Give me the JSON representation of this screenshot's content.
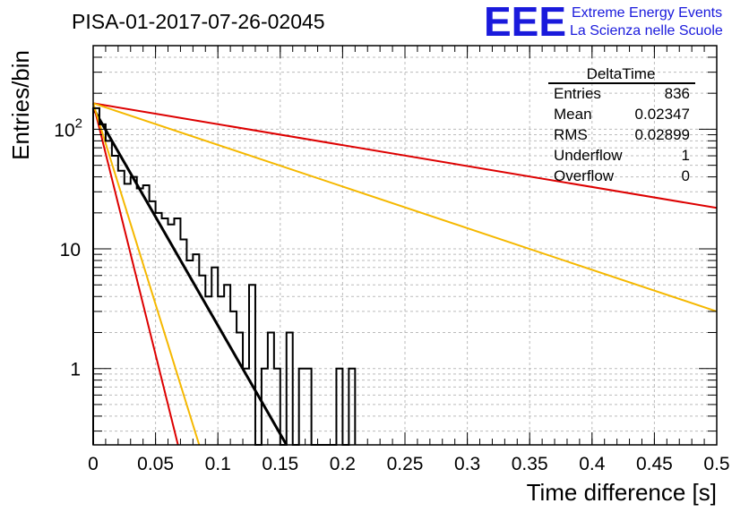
{
  "chart_data": {
    "type": "histogram",
    "title": "PISA-01-2017-07-26-02045",
    "xlabel": "Time difference [s]",
    "ylabel": "Entries/bin",
    "xlim": [
      0,
      0.5
    ],
    "ylim": [
      0.23,
      500
    ],
    "yscale": "log",
    "grid": true,
    "xticks": [
      "0",
      "0.05",
      "0.1",
      "0.15",
      "0.2",
      "0.25",
      "0.3",
      "0.35",
      "0.4",
      "0.45",
      "0.5"
    ],
    "xtick_values": [
      0,
      0.05,
      0.1,
      0.15,
      0.2,
      0.25,
      0.3,
      0.35,
      0.4,
      0.45,
      0.5
    ],
    "yticks": [
      "1",
      "10",
      "10^2"
    ],
    "ytick_values": [
      1,
      10,
      100
    ],
    "bin_width": 0.005,
    "histogram": [
      {
        "x": 0.0,
        "y": 150
      },
      {
        "x": 0.005,
        "y": 110
      },
      {
        "x": 0.01,
        "y": 80
      },
      {
        "x": 0.015,
        "y": 60
      },
      {
        "x": 0.02,
        "y": 45
      },
      {
        "x": 0.025,
        "y": 35
      },
      {
        "x": 0.03,
        "y": 40
      },
      {
        "x": 0.035,
        "y": 32
      },
      {
        "x": 0.04,
        "y": 34
      },
      {
        "x": 0.045,
        "y": 25
      },
      {
        "x": 0.05,
        "y": 20
      },
      {
        "x": 0.055,
        "y": 18
      },
      {
        "x": 0.06,
        "y": 16
      },
      {
        "x": 0.065,
        "y": 18
      },
      {
        "x": 0.07,
        "y": 12
      },
      {
        "x": 0.075,
        "y": 8
      },
      {
        "x": 0.08,
        "y": 9
      },
      {
        "x": 0.085,
        "y": 6
      },
      {
        "x": 0.09,
        "y": 4
      },
      {
        "x": 0.095,
        "y": 7
      },
      {
        "x": 0.1,
        "y": 4
      },
      {
        "x": 0.105,
        "y": 5
      },
      {
        "x": 0.11,
        "y": 3
      },
      {
        "x": 0.115,
        "y": 2
      },
      {
        "x": 0.12,
        "y": 1
      },
      {
        "x": 0.125,
        "y": 5
      },
      {
        "x": 0.13,
        "y": 0
      },
      {
        "x": 0.135,
        "y": 1
      },
      {
        "x": 0.14,
        "y": 2
      },
      {
        "x": 0.145,
        "y": 1
      },
      {
        "x": 0.15,
        "y": 0
      },
      {
        "x": 0.155,
        "y": 2
      },
      {
        "x": 0.16,
        "y": 0
      },
      {
        "x": 0.165,
        "y": 1
      },
      {
        "x": 0.17,
        "y": 1
      },
      {
        "x": 0.175,
        "y": 0
      },
      {
        "x": 0.18,
        "y": 0
      },
      {
        "x": 0.185,
        "y": 0
      },
      {
        "x": 0.19,
        "y": 0
      },
      {
        "x": 0.195,
        "y": 1
      },
      {
        "x": 0.2,
        "y": 0
      },
      {
        "x": 0.205,
        "y": 1
      }
    ],
    "fits": [
      {
        "color": "#000000",
        "points": [
          [
            0.0,
            150
          ],
          [
            0.155,
            0.23
          ]
        ]
      },
      {
        "color": "#dd0000",
        "points": [
          [
            0.0,
            165
          ],
          [
            0.5,
            22
          ]
        ]
      },
      {
        "color": "#f5b800",
        "points": [
          [
            0.0,
            165
          ],
          [
            0.5,
            3.0
          ]
        ]
      },
      {
        "color": "#dd0000",
        "points": [
          [
            0.0,
            165
          ],
          [
            0.068,
            0.23
          ]
        ]
      },
      {
        "color": "#f5b800",
        "points": [
          [
            0.0,
            165
          ],
          [
            0.085,
            0.23
          ]
        ]
      }
    ],
    "stats": {
      "title": "DeltaTime",
      "rows": [
        {
          "label": "Entries",
          "value": "836"
        },
        {
          "label": "Mean",
          "value": "0.02347"
        },
        {
          "label": "RMS",
          "value": "0.02899"
        },
        {
          "label": "Underflow",
          "value": "1"
        },
        {
          "label": "Overflow",
          "value": "0"
        }
      ]
    }
  },
  "logo": {
    "mark": "EEE",
    "line1": "Extreme Energy Events",
    "line2": "La Scienza nelle Scuole",
    "color": "#1a1adc"
  }
}
